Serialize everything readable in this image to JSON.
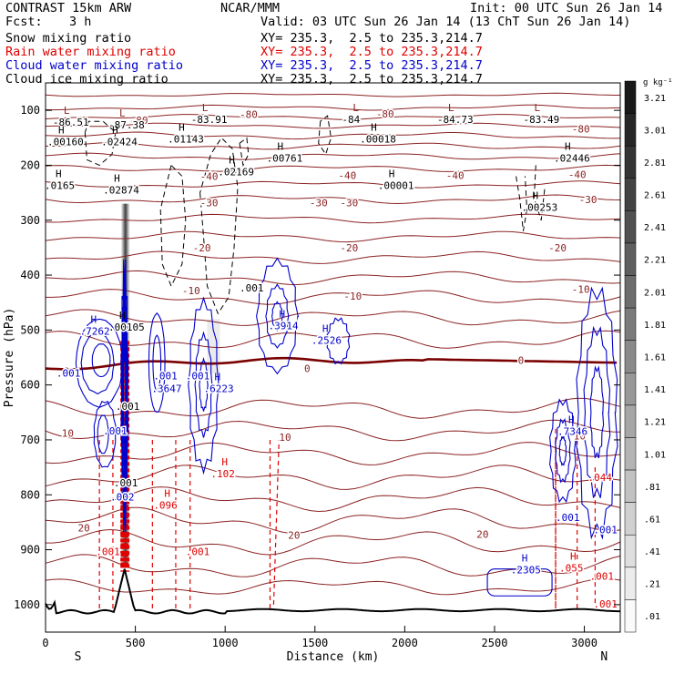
{
  "header": {
    "model": "CONTRAST 15km ARW",
    "fcst_label": "Fcst:",
    "fcst_value": "3 h",
    "center": "NCAR/MMM",
    "init": "Init: 00 UTC Sun 26 Jan 14",
    "valid": "Valid: 03 UTC Sun 26 Jan 14 (13 ChT Sun 26 Jan 14)"
  },
  "legend": [
    {
      "field": "Snow mixing ratio",
      "xy": "XY= 235.3,  2.5 to 235.3,214.7",
      "color": "#000000"
    },
    {
      "field": "Rain water mixing ratio",
      "xy": "XY= 235.3,  2.5 to 235.3,214.7",
      "color": "#e00000"
    },
    {
      "field": "Cloud water mixing ratio",
      "xy": "XY= 235.3,  2.5 to 235.3,214.7",
      "color": "#0000cc"
    },
    {
      "field": "Cloud ice mixing ratio",
      "xy": "XY= 235.3,  2.5 to 235.3,214.7",
      "color": "#000000"
    }
  ],
  "chart_data": {
    "type": "cross-section contour",
    "ylabel": "Pressure (hPa)",
    "xlabel": "Distance (km)",
    "x_ticks": [
      0,
      500,
      1000,
      1500,
      2000,
      2500,
      3000
    ],
    "y_ticks": [
      100,
      200,
      300,
      400,
      500,
      600,
      700,
      800,
      900,
      1000
    ],
    "xlim": [
      0,
      3200
    ],
    "ylim": [
      1050,
      50
    ],
    "end_labels": {
      "left": "S",
      "right": "N"
    },
    "colorbar": {
      "unit": "g kg⁻¹",
      "labels": [
        "3.21",
        "3.01",
        "2.81",
        "2.61",
        "2.41",
        "2.21",
        "2.01",
        "1.81",
        "1.61",
        "1.41",
        "1.21",
        "1.01",
        ".81",
        ".61",
        ".41",
        ".21",
        ".01"
      ]
    },
    "isotherms": [
      {
        "value": -80,
        "labels": [
          "-80",
          "-80",
          "-80",
          "-80"
        ]
      },
      {
        "value": -40,
        "labels": [
          "-40",
          "-40",
          "-40",
          "-40"
        ]
      },
      {
        "value": -30,
        "labels": [
          "-30",
          "-30",
          "-30",
          "-30"
        ]
      },
      {
        "value": -20,
        "labels": [
          "-20",
          "-20",
          "-20"
        ]
      },
      {
        "value": -10,
        "labels": [
          "-10",
          "-10",
          "-10"
        ]
      },
      {
        "value": 0,
        "labels": [
          "0",
          "0",
          "0"
        ]
      },
      {
        "value": 10,
        "labels": [
          "10",
          "10",
          "10"
        ]
      },
      {
        "value": 20,
        "labels": [
          "20",
          "20",
          "20"
        ]
      }
    ],
    "extrema": [
      {
        "kind": "L",
        "value": "-86.51"
      },
      {
        "kind": "L",
        "value": "-87.38"
      },
      {
        "kind": "L",
        "value": "-83.91"
      },
      {
        "kind": "L",
        "value": "-84"
      },
      {
        "kind": "L",
        "value": "-84.73"
      },
      {
        "kind": "L",
        "value": "-83.49"
      },
      {
        "kind": "H",
        "value": ".00160"
      },
      {
        "kind": "H",
        "value": ".02424"
      },
      {
        "kind": "H",
        "value": ".01143"
      },
      {
        "kind": "H",
        "value": ".00018"
      },
      {
        "kind": "H",
        "value": ".00761"
      },
      {
        "kind": "H",
        "value": ".02446"
      },
      {
        "kind": "H",
        "value": ".02169"
      },
      {
        "kind": "H",
        "value": ".00001"
      },
      {
        "kind": "H",
        "value": ".02874"
      },
      {
        "kind": "H",
        "value": ".00253"
      },
      {
        "kind": "H",
        "value": ".0165"
      },
      {
        "kind": "H",
        "value": ".7262"
      },
      {
        "kind": "H",
        "value": ".3914"
      },
      {
        "kind": "H",
        "value": ".2526"
      },
      {
        "kind": "H",
        "value": ".3647"
      },
      {
        "kind": "H",
        "value": ".6223"
      },
      {
        "kind": "H",
        "value": ".7346"
      },
      {
        "kind": "H",
        "value": ".2305"
      },
      {
        "kind": "H",
        "value": ".102"
      },
      {
        "kind": "H",
        "value": ".096"
      },
      {
        "kind": "H",
        "value": ".055"
      },
      {
        "kind": "H",
        "value": ".00105"
      }
    ],
    "small_labels": [
      ".001",
      ".001",
      ".001",
      ".001",
      ".001",
      ".001",
      ".001",
      ".001",
      ".001",
      ".001",
      ".001",
      ".001",
      ".002",
      ".044",
      ".001"
    ]
  }
}
